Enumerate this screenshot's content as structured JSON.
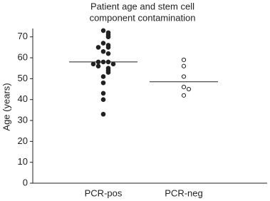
{
  "chart_data": {
    "type": "strip",
    "title": [
      "Patient age and stem cell",
      "component contamination"
    ],
    "y_label": "Age (years)",
    "categories": [
      "PCR-pos",
      "PCR-neg"
    ],
    "groups": [
      {
        "values": [
          73,
          72,
          71,
          70,
          67,
          66,
          65,
          65,
          63,
          62,
          58,
          58,
          58,
          57,
          57,
          56,
          55,
          54,
          53,
          51,
          48,
          43,
          40,
          33
        ],
        "median": 58,
        "marker": "filled"
      },
      {
        "values": [
          59,
          56,
          51,
          46,
          45,
          42
        ],
        "median": 48.5,
        "marker": "open"
      }
    ],
    "color": "#222222",
    "ylim": [
      0,
      74
    ],
    "yticks": [
      0,
      10,
      20,
      30,
      40,
      50,
      60,
      70
    ]
  }
}
